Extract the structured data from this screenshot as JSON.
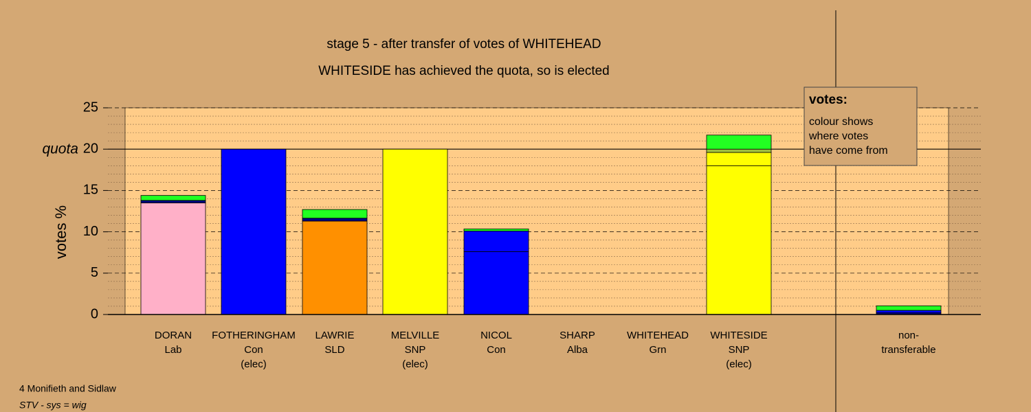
{
  "chart_data": {
    "type": "stacked-bar",
    "title": "stage 5 - after transfer of votes of WHITEHEAD",
    "subtitle": "WHITESIDE has achieved the quota, so is elected",
    "y_label": "votes %",
    "quota": {
      "label": "quota",
      "value": 20
    },
    "categories": [
      [
        "DORAN",
        "Lab"
      ],
      [
        "FOTHERINGHAM",
        "Con",
        "(elec)"
      ],
      [
        "LAWRIE",
        "SLD"
      ],
      [
        "MELVILLE",
        "SNP",
        "(elec)"
      ],
      [
        "NICOL",
        "Con"
      ],
      [
        "SHARP",
        "Alba"
      ],
      [
        "WHITEHEAD",
        "Grn"
      ],
      [
        "WHITESIDE",
        "SNP",
        "(elec)"
      ],
      [
        "non-",
        "transferable"
      ]
    ],
    "stacks": [
      [
        {
          "value": 13.5,
          "color": "#ffb0c8"
        },
        {
          "value": 0.3,
          "color": "#000080"
        },
        {
          "value": 0.6,
          "color": "#22ff22"
        }
      ],
      [
        {
          "value": 20,
          "color": "#0000ff"
        }
      ],
      [
        {
          "value": 11.3,
          "color": "#ff9000"
        },
        {
          "value": 0.35,
          "color": "#000080"
        },
        {
          "value": 1.05,
          "color": "#22ff22"
        }
      ],
      [
        {
          "value": 20,
          "color": "#ffff00"
        }
      ],
      [
        {
          "value": 7.6,
          "color": "#0000ff"
        },
        {
          "value": 2.5,
          "color": "#0000ff"
        },
        {
          "value": 0.25,
          "color": "#22ff22"
        }
      ],
      [],
      [],
      [
        {
          "value": 18.0,
          "color": "#ffff00"
        },
        {
          "value": 1.6,
          "color": "#ffff00"
        },
        {
          "value": 0.4,
          "color": "#a0c040"
        },
        {
          "value": 1.7,
          "color": "#22ff22"
        }
      ],
      [
        {
          "value": 0.2,
          "color": "#000080"
        },
        {
          "value": 0.3,
          "color": "#0000ff"
        },
        {
          "value": 0.55,
          "color": "#22ff22"
        }
      ]
    ],
    "ylim": [
      0,
      25
    ],
    "yticks": [
      0,
      5,
      10,
      15,
      20,
      25
    ],
    "minor_yticks": [
      1,
      2,
      3,
      4,
      6,
      7,
      8,
      9,
      11,
      12,
      13,
      14,
      16,
      17,
      18,
      19,
      21,
      22,
      23,
      24
    ],
    "legend": {
      "title": "votes:",
      "lines": [
        "colour shows",
        "where votes",
        "have come from"
      ]
    },
    "footer": [
      "4 Monifieth and Sidlaw",
      "STV - sys = wig"
    ]
  }
}
